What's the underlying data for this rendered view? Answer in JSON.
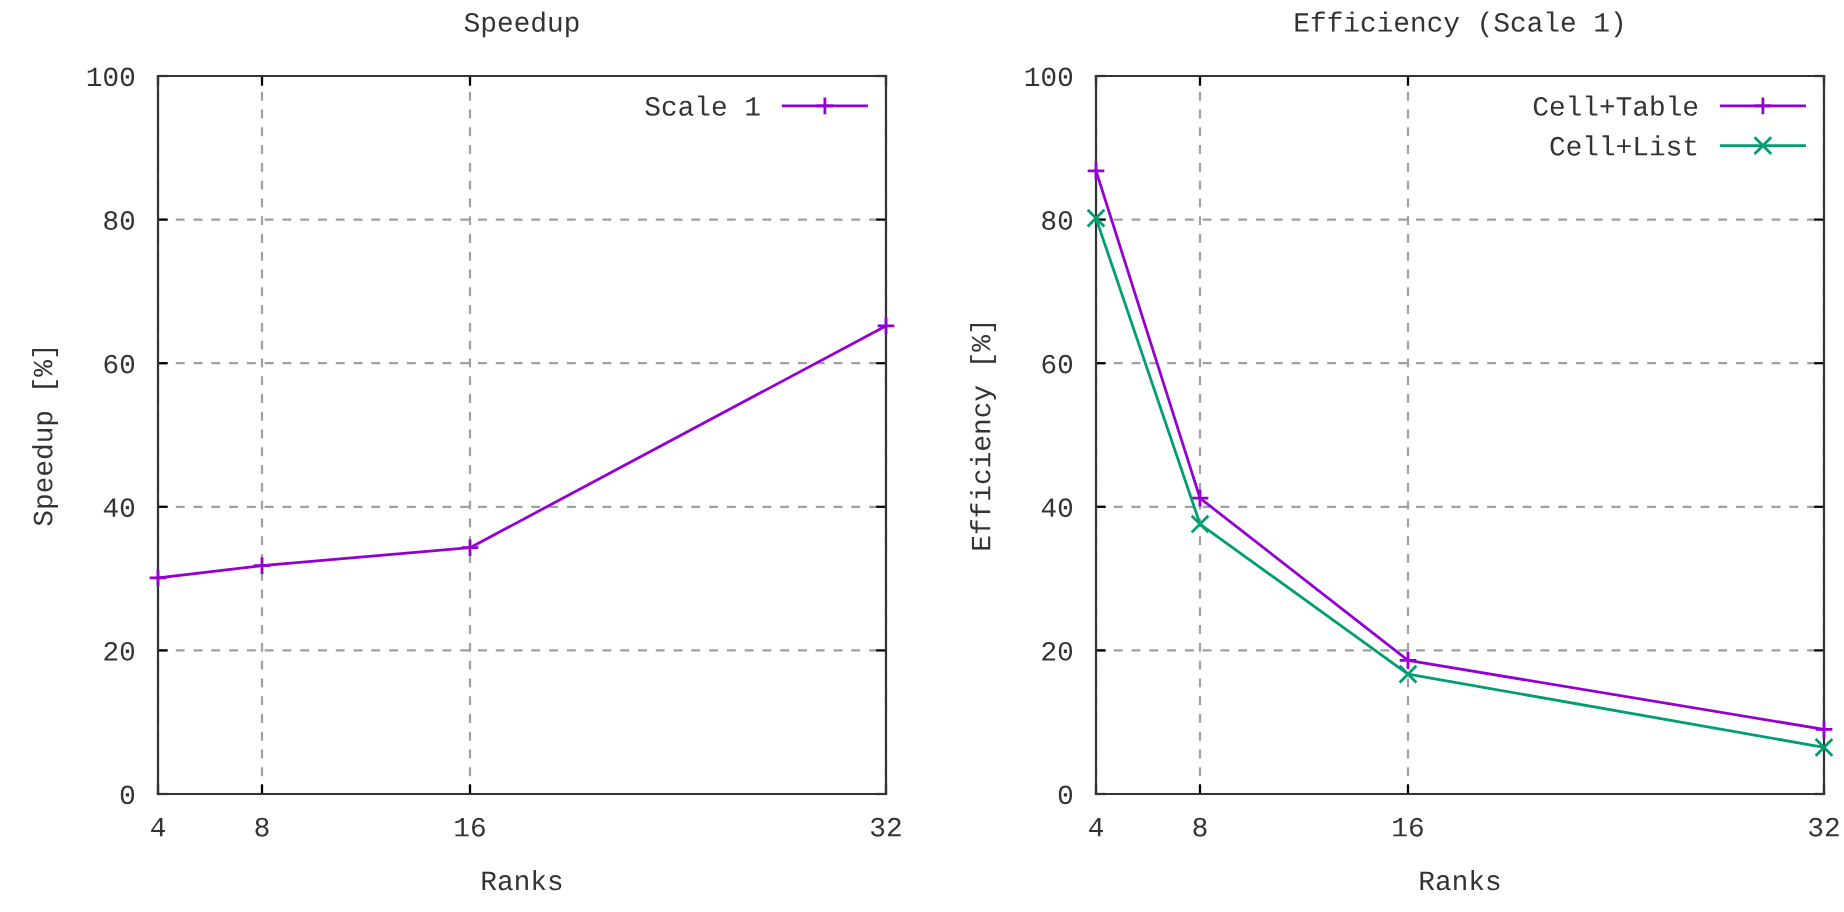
{
  "chart_data": [
    {
      "type": "line",
      "title": "Speedup",
      "xlabel": "Ranks",
      "ylabel": "Speedup [%]",
      "x": [
        4,
        8,
        16,
        32
      ],
      "xlim": [
        4,
        32
      ],
      "xticks": [
        4,
        8,
        16,
        32
      ],
      "ylim": [
        0,
        100
      ],
      "yticks": [
        0,
        20,
        40,
        60,
        80,
        100
      ],
      "grid": true,
      "legend": "top right",
      "series": [
        {
          "name": "Scale 1",
          "color": "#9400d3",
          "marker": "cross",
          "values": [
            30.1,
            31.8,
            34.3,
            65.2
          ]
        }
      ]
    },
    {
      "type": "line",
      "title": "Efficiency (Scale 1)",
      "xlabel": "Ranks",
      "ylabel": "Efficiency [%]",
      "x": [
        4,
        8,
        16,
        32
      ],
      "xlim": [
        4,
        32
      ],
      "xticks": [
        4,
        8,
        16,
        32
      ],
      "ylim": [
        0,
        100
      ],
      "yticks": [
        0,
        20,
        40,
        60,
        80,
        100
      ],
      "grid": true,
      "legend": "top right",
      "series": [
        {
          "name": "Cell+Table",
          "color": "#9400d3",
          "marker": "cross",
          "values": [
            86.8,
            41.2,
            18.6,
            9.0
          ]
        },
        {
          "name": "Cell+List",
          "color": "#009e73",
          "marker": "x",
          "values": [
            80.2,
            37.6,
            16.7,
            6.5
          ]
        }
      ]
    }
  ]
}
